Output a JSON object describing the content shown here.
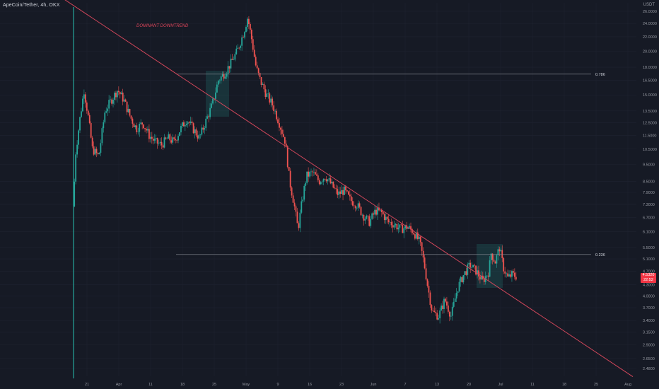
{
  "chart_title": "ApeCoin/Tether, 4h, OKX",
  "y_axis_unit": "USDT",
  "annotation_text": "DOMINANT DOWNTREND",
  "price_badge": {
    "price": "4.5320",
    "countdown": "22:52"
  },
  "colors": {
    "background": "#161a25",
    "grid": "#1f2330",
    "up": "#26a69a",
    "down": "#ef5350",
    "trendline": "#d0465a",
    "fib_line": "#8a8d96",
    "box": "#26a69a",
    "badge": "#f23645"
  },
  "chart_data": {
    "type": "candlestick",
    "symbol": "ApeCoin/Tether",
    "interval": "4h",
    "exchange": "OKX",
    "y_scale": "log",
    "y_ticks": [
      "26.0000",
      "24.0000",
      "22.0000",
      "20.0000",
      "18.0000",
      "16.5000",
      "15.0000",
      "13.5000",
      "12.5000",
      "11.5000",
      "10.5000",
      "9.5000",
      "8.5000",
      "7.9000",
      "7.3000",
      "6.7000",
      "6.1000",
      "5.5000",
      "5.1000",
      "4.7000",
      "4.3000",
      "4.0000",
      "3.7000",
      "3.4000",
      "3.1500",
      "2.9000",
      "2.6500",
      "2.4800"
    ],
    "x_ticks": [
      "21",
      "Apr",
      "11",
      "18",
      "25",
      "May",
      "9",
      "16",
      "23",
      "Jun",
      "7",
      "13",
      "20",
      "Jul",
      "11",
      "18",
      "25",
      "Aug"
    ],
    "fib_levels": [
      {
        "label": "0.786",
        "price": 17.2
      },
      {
        "label": "0.236",
        "price": 5.25
      }
    ],
    "trendline": {
      "start_price": 30.0,
      "end_price": 2.35
    },
    "price_path": [
      [
        17,
        7.2
      ],
      [
        17.4,
        10.0
      ],
      [
        18.5,
        12.8
      ],
      [
        19.5,
        15.5
      ],
      [
        20.5,
        13.0
      ],
      [
        21.5,
        10.5
      ],
      [
        23,
        10.0
      ],
      [
        24.5,
        13.5
      ],
      [
        26,
        14.5
      ],
      [
        27.5,
        15.5
      ],
      [
        29,
        14.5
      ],
      [
        30.5,
        13.0
      ],
      [
        32,
        12.0
      ],
      [
        33.5,
        12.5
      ],
      [
        35,
        11.5
      ],
      [
        36.5,
        11.0
      ],
      [
        38,
        10.8
      ],
      [
        39.5,
        11.3
      ],
      [
        41,
        11.0
      ],
      [
        42.5,
        12.0
      ],
      [
        44,
        12.8
      ],
      [
        45.5,
        12.0
      ],
      [
        47,
        11.3
      ],
      [
        48.5,
        12.6
      ],
      [
        50,
        14.0
      ],
      [
        51.5,
        16.5
      ],
      [
        53,
        17.3
      ],
      [
        54.5,
        18.5
      ],
      [
        56,
        20.0
      ],
      [
        57.5,
        22.5
      ],
      [
        58.5,
        25.0
      ],
      [
        59.5,
        21.5
      ],
      [
        60.5,
        18.0
      ],
      [
        61.5,
        16.5
      ],
      [
        63,
        15.0
      ],
      [
        64.5,
        14.0
      ],
      [
        66,
        12.5
      ],
      [
        67.5,
        11.0
      ],
      [
        68.5,
        8.5
      ],
      [
        69.5,
        7.4
      ],
      [
        70.5,
        6.2
      ],
      [
        71.5,
        7.5
      ],
      [
        72.5,
        8.8
      ],
      [
        74,
        9.0
      ],
      [
        75.5,
        8.5
      ],
      [
        77,
        8.8
      ],
      [
        78.5,
        8.3
      ],
      [
        80,
        7.8
      ],
      [
        81.5,
        8.0
      ],
      [
        83,
        7.5
      ],
      [
        84.5,
        7.3
      ],
      [
        86,
        6.8
      ],
      [
        87.5,
        6.5
      ],
      [
        89,
        7.0
      ],
      [
        90.5,
        6.9
      ],
      [
        92,
        6.5
      ],
      [
        93.5,
        6.4
      ],
      [
        95,
        6.2
      ],
      [
        96.5,
        6.3
      ],
      [
        98,
        6.1
      ],
      [
        99.5,
        5.7
      ],
      [
        100.5,
        5.0
      ],
      [
        101.5,
        4.2
      ],
      [
        102.5,
        3.6
      ],
      [
        104,
        3.5
      ],
      [
        105.5,
        3.9
      ],
      [
        107,
        3.5
      ],
      [
        108.5,
        4.2
      ],
      [
        110,
        4.6
      ],
      [
        111.5,
        4.9
      ],
      [
        113,
        4.7
      ],
      [
        114.5,
        4.4
      ],
      [
        116,
        4.7
      ],
      [
        116.5,
        5.3
      ],
      [
        117.5,
        5.0
      ],
      [
        118.5,
        5.5
      ],
      [
        119.5,
        4.8
      ],
      [
        120.5,
        4.5
      ],
      [
        121.5,
        4.6
      ],
      [
        122.5,
        4.55
      ]
    ]
  }
}
